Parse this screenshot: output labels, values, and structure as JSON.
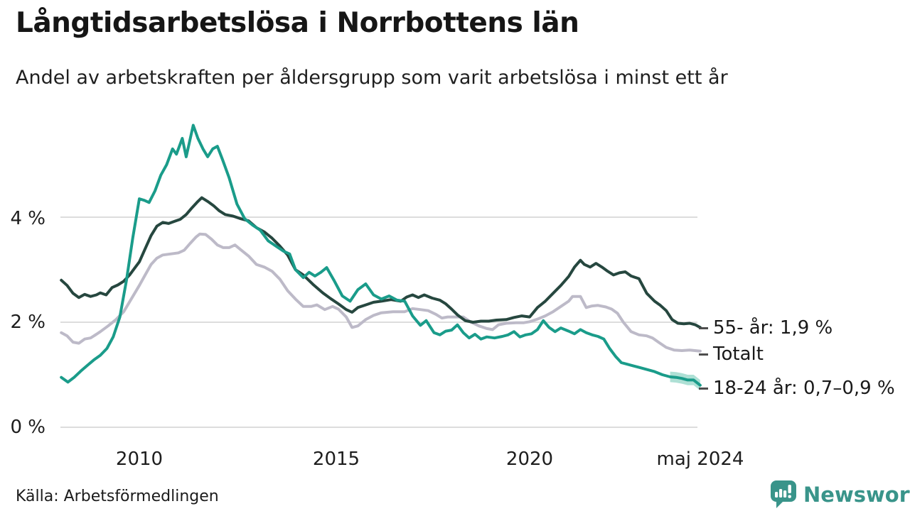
{
  "header": {
    "title": "Långtidsarbetslösa i Norrbottens län",
    "subtitle": "Andel av arbetskraften per åldersgrupp som varit arbetslösa i minst ett år"
  },
  "footer": {
    "source": "Källa: Arbetsförmedlingen",
    "brand": "Newsworthy",
    "brand_color": "#39948a"
  },
  "chart_data": {
    "type": "line",
    "title": "Långtidsarbetslösa i Norrbottens län",
    "subtitle": "Andel av arbetskraften per åldersgrupp som varit arbetslösa i minst ett år",
    "grid": true,
    "grid_color": "#dddddd",
    "legend_position": "end-of-line-labels-right",
    "x_axis": {
      "range": [
        2008.0,
        2024.42
      ],
      "ticks": [
        {
          "label": "2010",
          "year": 2010
        },
        {
          "label": "2015",
          "year": 2015
        },
        {
          "label": "2020",
          "year": 2020
        },
        {
          "label": "maj 2024",
          "year": 2024.37
        }
      ]
    },
    "y_axis": {
      "unit": "%",
      "range": [
        0,
        6.2
      ],
      "ticks": [
        {
          "label": "0 %",
          "value": 0
        },
        {
          "label": "2 %",
          "value": 2
        },
        {
          "label": "4 %",
          "value": 4
        }
      ]
    },
    "series": [
      {
        "id": "totalt",
        "name": "Totalt",
        "end_label": "Totalt",
        "color": "#bdbac8",
        "points": [
          [
            2008.0,
            1.8
          ],
          [
            2008.15,
            1.74
          ],
          [
            2008.3,
            1.62
          ],
          [
            2008.45,
            1.6
          ],
          [
            2008.6,
            1.68
          ],
          [
            2008.75,
            1.7
          ],
          [
            2008.9,
            1.77
          ],
          [
            2009.0,
            1.82
          ],
          [
            2009.2,
            1.93
          ],
          [
            2009.4,
            2.05
          ],
          [
            2009.6,
            2.2
          ],
          [
            2009.8,
            2.45
          ],
          [
            2010.0,
            2.7
          ],
          [
            2010.15,
            2.9
          ],
          [
            2010.3,
            3.1
          ],
          [
            2010.45,
            3.22
          ],
          [
            2010.6,
            3.28
          ],
          [
            2010.8,
            3.3
          ],
          [
            2011.0,
            3.32
          ],
          [
            2011.15,
            3.37
          ],
          [
            2011.3,
            3.5
          ],
          [
            2011.45,
            3.62
          ],
          [
            2011.55,
            3.68
          ],
          [
            2011.7,
            3.67
          ],
          [
            2011.85,
            3.58
          ],
          [
            2012.0,
            3.47
          ],
          [
            2012.15,
            3.42
          ],
          [
            2012.3,
            3.42
          ],
          [
            2012.45,
            3.47
          ],
          [
            2012.6,
            3.38
          ],
          [
            2012.8,
            3.26
          ],
          [
            2013.0,
            3.1
          ],
          [
            2013.2,
            3.05
          ],
          [
            2013.4,
            2.97
          ],
          [
            2013.6,
            2.82
          ],
          [
            2013.8,
            2.6
          ],
          [
            2014.0,
            2.44
          ],
          [
            2014.2,
            2.3
          ],
          [
            2014.4,
            2.3
          ],
          [
            2014.55,
            2.33
          ],
          [
            2014.75,
            2.24
          ],
          [
            2014.95,
            2.3
          ],
          [
            2015.1,
            2.25
          ],
          [
            2015.3,
            2.1
          ],
          [
            2015.45,
            1.9
          ],
          [
            2015.6,
            1.93
          ],
          [
            2015.8,
            2.05
          ],
          [
            2016.0,
            2.13
          ],
          [
            2016.2,
            2.18
          ],
          [
            2016.5,
            2.2
          ],
          [
            2016.8,
            2.2
          ],
          [
            2017.0,
            2.26
          ],
          [
            2017.2,
            2.24
          ],
          [
            2017.4,
            2.22
          ],
          [
            2017.6,
            2.15
          ],
          [
            2017.75,
            2.08
          ],
          [
            2017.9,
            2.1
          ],
          [
            2018.1,
            2.1
          ],
          [
            2018.3,
            2.1
          ],
          [
            2018.5,
            2.0
          ],
          [
            2018.7,
            1.93
          ],
          [
            2018.9,
            1.88
          ],
          [
            2019.05,
            1.86
          ],
          [
            2019.2,
            1.95
          ],
          [
            2019.4,
            1.98
          ],
          [
            2019.65,
            1.99
          ],
          [
            2019.85,
            1.99
          ],
          [
            2020.0,
            2.01
          ],
          [
            2020.2,
            2.06
          ],
          [
            2020.4,
            2.12
          ],
          [
            2020.6,
            2.2
          ],
          [
            2020.8,
            2.3
          ],
          [
            2021.0,
            2.4
          ],
          [
            2021.1,
            2.49
          ],
          [
            2021.3,
            2.49
          ],
          [
            2021.45,
            2.28
          ],
          [
            2021.6,
            2.31
          ],
          [
            2021.75,
            2.32
          ],
          [
            2021.95,
            2.29
          ],
          [
            2022.1,
            2.25
          ],
          [
            2022.25,
            2.17
          ],
          [
            2022.4,
            2.0
          ],
          [
            2022.6,
            1.82
          ],
          [
            2022.8,
            1.76
          ],
          [
            2023.0,
            1.74
          ],
          [
            2023.15,
            1.7
          ],
          [
            2023.3,
            1.62
          ],
          [
            2023.5,
            1.52
          ],
          [
            2023.7,
            1.47
          ],
          [
            2023.9,
            1.46
          ],
          [
            2024.1,
            1.47
          ],
          [
            2024.37,
            1.45
          ]
        ]
      },
      {
        "id": "55-ar",
        "name": "55- år",
        "end_label": "55- år: 1,9 %",
        "color": "#26473f",
        "points": [
          [
            2008.0,
            2.8
          ],
          [
            2008.15,
            2.7
          ],
          [
            2008.3,
            2.55
          ],
          [
            2008.45,
            2.47
          ],
          [
            2008.6,
            2.53
          ],
          [
            2008.75,
            2.49
          ],
          [
            2008.9,
            2.52
          ],
          [
            2009.0,
            2.56
          ],
          [
            2009.15,
            2.52
          ],
          [
            2009.3,
            2.66
          ],
          [
            2009.45,
            2.71
          ],
          [
            2009.6,
            2.78
          ],
          [
            2009.75,
            2.9
          ],
          [
            2009.9,
            3.05
          ],
          [
            2010.0,
            3.15
          ],
          [
            2010.15,
            3.4
          ],
          [
            2010.3,
            3.65
          ],
          [
            2010.45,
            3.83
          ],
          [
            2010.6,
            3.9
          ],
          [
            2010.75,
            3.88
          ],
          [
            2010.9,
            3.92
          ],
          [
            2011.05,
            3.96
          ],
          [
            2011.2,
            4.05
          ],
          [
            2011.35,
            4.18
          ],
          [
            2011.5,
            4.3
          ],
          [
            2011.6,
            4.37
          ],
          [
            2011.75,
            4.3
          ],
          [
            2011.9,
            4.22
          ],
          [
            2012.05,
            4.12
          ],
          [
            2012.2,
            4.05
          ],
          [
            2012.4,
            4.02
          ],
          [
            2012.6,
            3.97
          ],
          [
            2012.8,
            3.93
          ],
          [
            2013.0,
            3.8
          ],
          [
            2013.2,
            3.72
          ],
          [
            2013.4,
            3.6
          ],
          [
            2013.6,
            3.45
          ],
          [
            2013.8,
            3.28
          ],
          [
            2014.0,
            3.0
          ],
          [
            2014.2,
            2.9
          ],
          [
            2014.45,
            2.72
          ],
          [
            2014.7,
            2.56
          ],
          [
            2014.9,
            2.45
          ],
          [
            2015.1,
            2.35
          ],
          [
            2015.3,
            2.24
          ],
          [
            2015.45,
            2.19
          ],
          [
            2015.6,
            2.28
          ],
          [
            2015.8,
            2.33
          ],
          [
            2016.0,
            2.38
          ],
          [
            2016.2,
            2.4
          ],
          [
            2016.45,
            2.43
          ],
          [
            2016.7,
            2.4
          ],
          [
            2016.85,
            2.48
          ],
          [
            2017.0,
            2.52
          ],
          [
            2017.15,
            2.47
          ],
          [
            2017.3,
            2.52
          ],
          [
            2017.5,
            2.46
          ],
          [
            2017.7,
            2.42
          ],
          [
            2017.85,
            2.35
          ],
          [
            2018.0,
            2.25
          ],
          [
            2018.15,
            2.14
          ],
          [
            2018.35,
            2.03
          ],
          [
            2018.55,
            2.0
          ],
          [
            2018.75,
            2.02
          ],
          [
            2018.95,
            2.02
          ],
          [
            2019.15,
            2.04
          ],
          [
            2019.4,
            2.05
          ],
          [
            2019.6,
            2.09
          ],
          [
            2019.8,
            2.12
          ],
          [
            2020.0,
            2.1
          ],
          [
            2020.2,
            2.28
          ],
          [
            2020.4,
            2.4
          ],
          [
            2020.6,
            2.55
          ],
          [
            2020.8,
            2.7
          ],
          [
            2021.0,
            2.87
          ],
          [
            2021.15,
            3.05
          ],
          [
            2021.3,
            3.18
          ],
          [
            2021.4,
            3.1
          ],
          [
            2021.55,
            3.05
          ],
          [
            2021.7,
            3.12
          ],
          [
            2021.85,
            3.05
          ],
          [
            2022.0,
            2.97
          ],
          [
            2022.15,
            2.9
          ],
          [
            2022.3,
            2.94
          ],
          [
            2022.45,
            2.96
          ],
          [
            2022.6,
            2.88
          ],
          [
            2022.8,
            2.83
          ],
          [
            2023.0,
            2.55
          ],
          [
            2023.2,
            2.4
          ],
          [
            2023.35,
            2.32
          ],
          [
            2023.5,
            2.22
          ],
          [
            2023.65,
            2.05
          ],
          [
            2023.8,
            1.98
          ],
          [
            2023.95,
            1.97
          ],
          [
            2024.1,
            1.98
          ],
          [
            2024.25,
            1.95
          ],
          [
            2024.37,
            1.9
          ]
        ]
      },
      {
        "id": "18-24-ar",
        "name": "18-24 år",
        "end_label": "18-24 år: 0,7–0,9 %",
        "color": "#1a9c8a",
        "band": {
          "from": 2023.55,
          "halfwidth": 0.1,
          "color": "#aee0d5"
        },
        "points": [
          [
            2008.0,
            0.95
          ],
          [
            2008.17,
            0.86
          ],
          [
            2008.33,
            0.95
          ],
          [
            2008.5,
            1.07
          ],
          [
            2008.67,
            1.18
          ],
          [
            2008.83,
            1.28
          ],
          [
            2009.0,
            1.37
          ],
          [
            2009.17,
            1.5
          ],
          [
            2009.33,
            1.72
          ],
          [
            2009.5,
            2.1
          ],
          [
            2009.67,
            2.8
          ],
          [
            2009.83,
            3.6
          ],
          [
            2010.0,
            4.35
          ],
          [
            2010.13,
            4.32
          ],
          [
            2010.25,
            4.28
          ],
          [
            2010.4,
            4.5
          ],
          [
            2010.55,
            4.8
          ],
          [
            2010.7,
            5.0
          ],
          [
            2010.85,
            5.3
          ],
          [
            2010.95,
            5.2
          ],
          [
            2011.1,
            5.5
          ],
          [
            2011.2,
            5.15
          ],
          [
            2011.38,
            5.75
          ],
          [
            2011.5,
            5.5
          ],
          [
            2011.63,
            5.3
          ],
          [
            2011.75,
            5.15
          ],
          [
            2011.88,
            5.3
          ],
          [
            2012.0,
            5.35
          ],
          [
            2012.13,
            5.1
          ],
          [
            2012.3,
            4.75
          ],
          [
            2012.5,
            4.25
          ],
          [
            2012.7,
            3.97
          ],
          [
            2012.9,
            3.85
          ],
          [
            2013.1,
            3.75
          ],
          [
            2013.3,
            3.55
          ],
          [
            2013.5,
            3.45
          ],
          [
            2013.7,
            3.35
          ],
          [
            2013.85,
            3.3
          ],
          [
            2014.0,
            3.0
          ],
          [
            2014.2,
            2.85
          ],
          [
            2014.35,
            2.95
          ],
          [
            2014.5,
            2.88
          ],
          [
            2014.65,
            2.95
          ],
          [
            2014.8,
            3.04
          ],
          [
            2015.0,
            2.78
          ],
          [
            2015.2,
            2.5
          ],
          [
            2015.4,
            2.4
          ],
          [
            2015.6,
            2.62
          ],
          [
            2015.8,
            2.73
          ],
          [
            2016.0,
            2.52
          ],
          [
            2016.2,
            2.44
          ],
          [
            2016.4,
            2.5
          ],
          [
            2016.6,
            2.42
          ],
          [
            2016.8,
            2.4
          ],
          [
            2017.0,
            2.12
          ],
          [
            2017.2,
            1.94
          ],
          [
            2017.35,
            2.03
          ],
          [
            2017.55,
            1.8
          ],
          [
            2017.7,
            1.76
          ],
          [
            2017.85,
            1.83
          ],
          [
            2018.0,
            1.85
          ],
          [
            2018.15,
            1.95
          ],
          [
            2018.3,
            1.8
          ],
          [
            2018.45,
            1.7
          ],
          [
            2018.6,
            1.77
          ],
          [
            2018.75,
            1.68
          ],
          [
            2018.9,
            1.72
          ],
          [
            2019.1,
            1.7
          ],
          [
            2019.3,
            1.73
          ],
          [
            2019.45,
            1.76
          ],
          [
            2019.6,
            1.82
          ],
          [
            2019.75,
            1.72
          ],
          [
            2019.9,
            1.76
          ],
          [
            2020.05,
            1.78
          ],
          [
            2020.2,
            1.86
          ],
          [
            2020.35,
            2.03
          ],
          [
            2020.5,
            1.9
          ],
          [
            2020.65,
            1.82
          ],
          [
            2020.8,
            1.89
          ],
          [
            2021.0,
            1.83
          ],
          [
            2021.15,
            1.78
          ],
          [
            2021.3,
            1.86
          ],
          [
            2021.45,
            1.8
          ],
          [
            2021.6,
            1.76
          ],
          [
            2021.75,
            1.73
          ],
          [
            2021.9,
            1.68
          ],
          [
            2022.05,
            1.5
          ],
          [
            2022.2,
            1.35
          ],
          [
            2022.35,
            1.23
          ],
          [
            2022.5,
            1.2
          ],
          [
            2022.65,
            1.17
          ],
          [
            2022.8,
            1.14
          ],
          [
            2023.0,
            1.1
          ],
          [
            2023.2,
            1.06
          ],
          [
            2023.4,
            1.0
          ],
          [
            2023.6,
            0.96
          ],
          [
            2023.75,
            0.95
          ],
          [
            2023.9,
            0.93
          ],
          [
            2024.05,
            0.9
          ],
          [
            2024.2,
            0.9
          ],
          [
            2024.37,
            0.8
          ]
        ]
      }
    ]
  }
}
